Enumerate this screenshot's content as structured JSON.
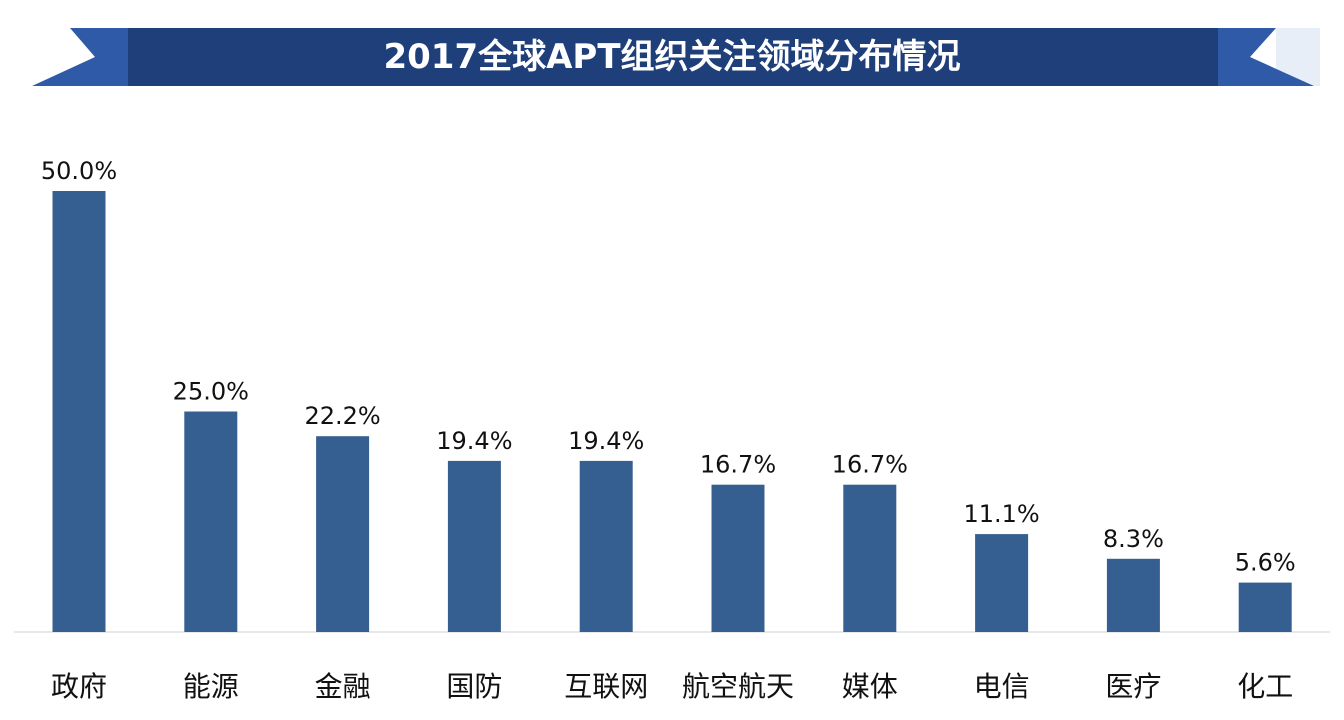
{
  "colors": {
    "bar": "#365f91",
    "banner_main": "#1f3f7a",
    "banner_accent": "#2e5aa8",
    "axis": "#d0d0d0"
  },
  "chart_data": {
    "type": "bar",
    "title": "2017全球APT组织关注领域分布情况",
    "categories": [
      "政府",
      "能源",
      "金融",
      "国防",
      "互联网",
      "航空航天",
      "媒体",
      "电信",
      "医疗",
      "化工"
    ],
    "values": [
      50.0,
      25.0,
      22.2,
      19.4,
      19.4,
      16.7,
      16.7,
      11.1,
      8.3,
      5.6
    ],
    "value_labels": [
      "50.0%",
      "25.0%",
      "22.2%",
      "19.4%",
      "19.4%",
      "16.7%",
      "16.7%",
      "11.1%",
      "8.3%",
      "5.6%"
    ],
    "xlabel": "",
    "ylabel": "",
    "ylim": [
      0,
      50
    ],
    "grid": false,
    "legend": "none"
  }
}
